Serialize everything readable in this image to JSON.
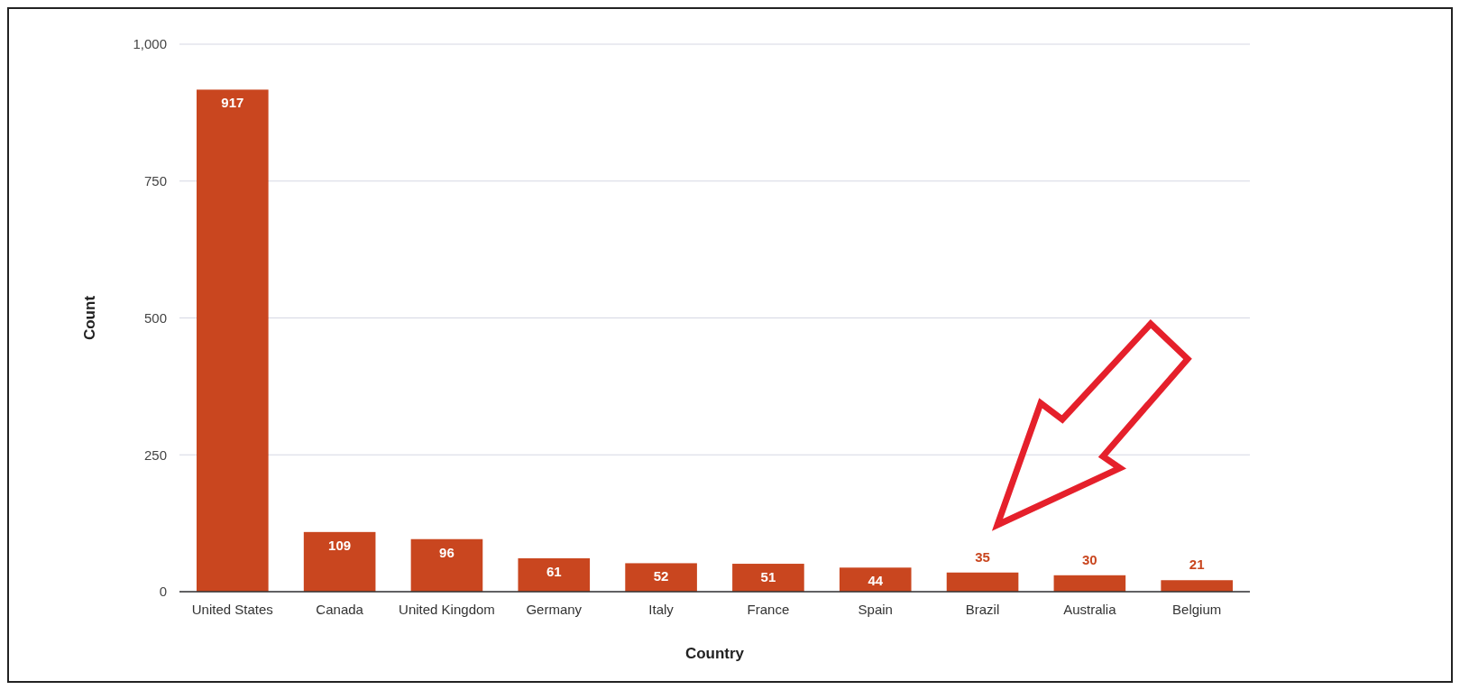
{
  "chart_data": {
    "type": "bar",
    "xlabel": "Country",
    "ylabel": "Count",
    "categories": [
      "United States",
      "Canada",
      "United Kingdom",
      "Germany",
      "Italy",
      "France",
      "Spain",
      "Brazil",
      "Australia",
      "Belgium"
    ],
    "values": [
      917,
      109,
      96,
      61,
      52,
      51,
      44,
      35,
      30,
      21
    ],
    "color": "#c9461f",
    "ylim": [
      0,
      1000
    ],
    "yticks": [
      0,
      250,
      500,
      750,
      {
        "value": 1000,
        "label": "1,000"
      }
    ],
    "grid": "y",
    "data_labels": true
  }
}
